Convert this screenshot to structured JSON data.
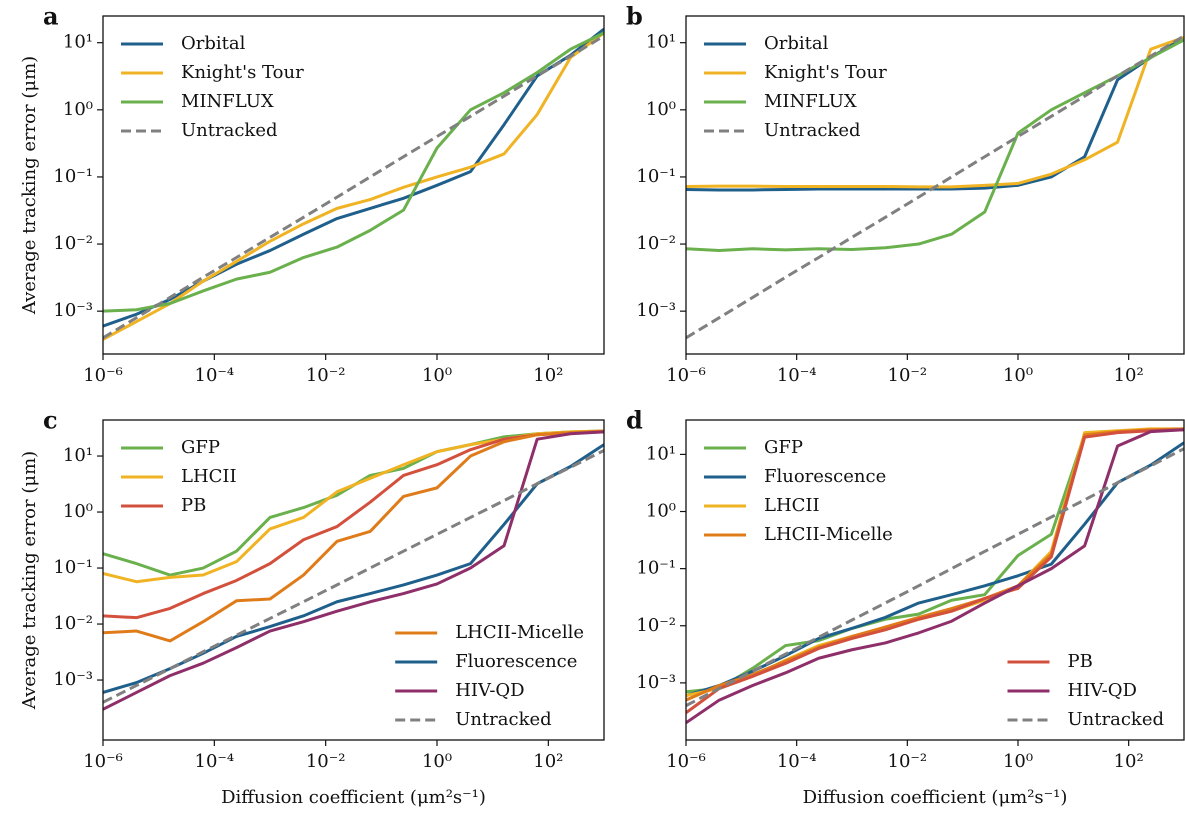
{
  "chart_data": [
    {
      "type": "line",
      "title": "a",
      "ylabel": "Average tracking error (μm)",
      "log_x": true,
      "log_y": true,
      "x": [
        1e-06,
        4e-06,
        1.6e-05,
        6.3e-05,
        0.00025,
        0.001,
        0.004,
        0.016,
        0.063,
        0.25,
        1,
        4,
        16,
        63,
        250,
        1000
      ],
      "xlim": [
        1e-06,
        1000
      ],
      "ylim": [
        0.00023,
        25
      ],
      "xticks": [
        {
          "value": 1e-06,
          "label": "10⁻⁶"
        },
        {
          "value": 0.0001,
          "label": "10⁻⁴"
        },
        {
          "value": 0.01,
          "label": "10⁻²"
        },
        {
          "value": 1,
          "label": "10⁰"
        },
        {
          "value": 100,
          "label": "10²"
        }
      ],
      "yticks": [
        {
          "value": 0.001,
          "label": "10⁻³"
        },
        {
          "value": 0.01,
          "label": "10⁻²"
        },
        {
          "value": 0.1,
          "label": "10⁻¹"
        },
        {
          "value": 1,
          "label": "10⁰"
        },
        {
          "value": 10,
          "label": "10¹"
        }
      ],
      "series": [
        {
          "name": "Orbital",
          "color": "#1f5f8b",
          "legend": "upper left",
          "values": [
            0.0006,
            0.0009,
            0.0015,
            0.0028,
            0.005,
            0.008,
            0.014,
            0.024,
            0.034,
            0.048,
            0.075,
            0.12,
            0.6,
            3.2,
            6.5,
            16
          ]
        },
        {
          "name": "Knight's Tour",
          "color": "#f0b323",
          "legend": "upper left",
          "values": [
            0.00038,
            0.0007,
            0.0013,
            0.0028,
            0.0055,
            0.011,
            0.02,
            0.034,
            0.046,
            0.07,
            0.1,
            0.14,
            0.22,
            0.85,
            6,
            14
          ]
        },
        {
          "name": "MINFLUX",
          "color": "#6ab04c",
          "legend": "upper left",
          "values": [
            0.001,
            0.00105,
            0.0013,
            0.002,
            0.003,
            0.0038,
            0.0063,
            0.009,
            0.016,
            0.032,
            0.27,
            1,
            1.8,
            3.6,
            8,
            14
          ]
        },
        {
          "name": "Untracked",
          "color": "#808080",
          "linestyle": "dashed",
          "legend": "upper left",
          "values": [
            0.0004,
            0.0008,
            0.0016,
            0.0032,
            0.0063,
            0.0126,
            0.025,
            0.05,
            0.1,
            0.2,
            0.4,
            0.8,
            1.6,
            3.2,
            6.3,
            12.6
          ]
        }
      ]
    },
    {
      "type": "line",
      "title": "b",
      "log_x": true,
      "log_y": true,
      "x": [
        1e-06,
        4e-06,
        1.6e-05,
        6.3e-05,
        0.00025,
        0.001,
        0.004,
        0.016,
        0.063,
        0.25,
        1,
        4,
        16,
        63,
        250,
        1000
      ],
      "xlim": [
        1e-06,
        1000
      ],
      "ylim": [
        0.00023,
        25
      ],
      "xticks": [
        {
          "value": 1e-06,
          "label": "10⁻⁶"
        },
        {
          "value": 0.0001,
          "label": "10⁻⁴"
        },
        {
          "value": 0.01,
          "label": "10⁻²"
        },
        {
          "value": 1,
          "label": "10⁰"
        },
        {
          "value": 100,
          "label": "10²"
        }
      ],
      "yticks": [
        {
          "value": 0.001,
          "label": "10⁻³"
        },
        {
          "value": 0.01,
          "label": "10⁻²"
        },
        {
          "value": 0.1,
          "label": "10⁻¹"
        },
        {
          "value": 1,
          "label": "10⁰"
        },
        {
          "value": 10,
          "label": "10¹"
        }
      ],
      "series": [
        {
          "name": "Orbital",
          "color": "#1f5f8b",
          "legend": "upper left",
          "values": [
            0.065,
            0.064,
            0.064,
            0.065,
            0.066,
            0.066,
            0.066,
            0.066,
            0.066,
            0.068,
            0.075,
            0.1,
            0.2,
            2.8,
            6,
            12
          ]
        },
        {
          "name": "Knight's Tour",
          "color": "#f0b323",
          "legend": "upper left",
          "values": [
            0.072,
            0.073,
            0.073,
            0.072,
            0.072,
            0.072,
            0.072,
            0.071,
            0.071,
            0.075,
            0.08,
            0.11,
            0.18,
            0.33,
            8,
            12
          ]
        },
        {
          "name": "MINFLUX",
          "color": "#6ab04c",
          "legend": "upper left",
          "values": [
            0.0085,
            0.008,
            0.0085,
            0.0082,
            0.0085,
            0.0083,
            0.0088,
            0.01,
            0.014,
            0.03,
            0.45,
            1,
            1.8,
            3.2,
            6,
            11
          ]
        },
        {
          "name": "Untracked",
          "color": "#808080",
          "linestyle": "dashed",
          "legend": "upper left",
          "values": [
            0.0004,
            0.0008,
            0.0016,
            0.0032,
            0.0063,
            0.0126,
            0.025,
            0.05,
            0.1,
            0.2,
            0.4,
            0.8,
            1.6,
            3.2,
            6.3,
            12.6
          ]
        }
      ]
    },
    {
      "type": "line",
      "title": "c",
      "ylabel": "Average tracking error (μm)",
      "xlabel": "Diffusion coefficient (μm²s⁻¹)",
      "log_x": true,
      "log_y": true,
      "x": [
        1e-06,
        4e-06,
        1.6e-05,
        6.3e-05,
        0.00025,
        0.001,
        0.004,
        0.016,
        0.063,
        0.25,
        1,
        4,
        16,
        63,
        250,
        1000
      ],
      "xlim": [
        1e-06,
        1000
      ],
      "ylim": [
        8.5e-05,
        44
      ],
      "xticks": [
        {
          "value": 1e-06,
          "label": "10⁻⁶"
        },
        {
          "value": 0.0001,
          "label": "10⁻⁴"
        },
        {
          "value": 0.01,
          "label": "10⁻²"
        },
        {
          "value": 1,
          "label": "10⁰"
        },
        {
          "value": 100,
          "label": "10²"
        }
      ],
      "yticks": [
        {
          "value": 0.001,
          "label": "10⁻³"
        },
        {
          "value": 0.01,
          "label": "10⁻²"
        },
        {
          "value": 0.1,
          "label": "10⁻¹"
        },
        {
          "value": 1,
          "label": "10⁰"
        },
        {
          "value": 10,
          "label": "10¹"
        }
      ],
      "series": [
        {
          "name": "GFP",
          "color": "#6ab04c",
          "legend": "upper left",
          "values": [
            0.18,
            0.12,
            0.075,
            0.1,
            0.2,
            0.8,
            1.2,
            2,
            4.5,
            6,
            12,
            16,
            22,
            25,
            27,
            28
          ]
        },
        {
          "name": "LHCII",
          "color": "#f0b323",
          "legend": "upper left",
          "values": [
            0.08,
            0.057,
            0.068,
            0.075,
            0.13,
            0.5,
            0.8,
            2.3,
            4,
            7,
            12,
            16,
            20,
            25,
            27,
            28
          ]
        },
        {
          "name": "PB",
          "color": "#d2503c",
          "legend": "upper left",
          "values": [
            0.014,
            0.013,
            0.019,
            0.035,
            0.06,
            0.12,
            0.32,
            0.55,
            1.5,
            4.5,
            7,
            13,
            20,
            24,
            26,
            27
          ]
        },
        {
          "name": "LHCII-Micelle",
          "color": "#e07b1a",
          "legend": "lower right",
          "values": [
            0.007,
            0.0075,
            0.005,
            0.011,
            0.026,
            0.028,
            0.075,
            0.3,
            0.45,
            1.9,
            2.7,
            10,
            18,
            24,
            26,
            28
          ]
        },
        {
          "name": "Fluorescence",
          "color": "#1f5f8b",
          "legend": "lower right",
          "values": [
            0.0006,
            0.0009,
            0.0016,
            0.003,
            0.006,
            0.009,
            0.014,
            0.025,
            0.035,
            0.05,
            0.075,
            0.12,
            0.6,
            3.2,
            6.5,
            16
          ]
        },
        {
          "name": "HIV-QD",
          "color": "#8e2f6a",
          "legend": "lower right",
          "values": [
            0.0003,
            0.0006,
            0.0012,
            0.002,
            0.0038,
            0.0075,
            0.011,
            0.017,
            0.025,
            0.035,
            0.052,
            0.1,
            0.25,
            20,
            25,
            27
          ]
        },
        {
          "name": "Untracked",
          "color": "#808080",
          "linestyle": "dashed",
          "legend": "lower right",
          "values": [
            0.0004,
            0.0008,
            0.0016,
            0.0032,
            0.0063,
            0.0126,
            0.025,
            0.05,
            0.1,
            0.2,
            0.4,
            0.8,
            1.6,
            3.2,
            6.3,
            12.6
          ]
        }
      ]
    },
    {
      "type": "line",
      "title": "d",
      "xlabel": "Diffusion coefficient (μm²s⁻¹)",
      "log_x": true,
      "log_y": true,
      "x": [
        1e-06,
        4e-06,
        1.6e-05,
        6.3e-05,
        0.00025,
        0.001,
        0.004,
        0.016,
        0.063,
        0.25,
        1,
        4,
        16,
        63,
        250,
        1000
      ],
      "xlim": [
        1e-06,
        1000
      ],
      "ylim": [
        0.0001,
        40
      ],
      "xticks": [
        {
          "value": 1e-06,
          "label": "10⁻⁶"
        },
        {
          "value": 0.0001,
          "label": "10⁻⁴"
        },
        {
          "value": 0.01,
          "label": "10⁻²"
        },
        {
          "value": 1,
          "label": "10⁰"
        },
        {
          "value": 100,
          "label": "10²"
        }
      ],
      "yticks": [
        {
          "value": 0.001,
          "label": "10⁻³"
        },
        {
          "value": 0.01,
          "label": "10⁻²"
        },
        {
          "value": 0.1,
          "label": "10⁻¹"
        },
        {
          "value": 1,
          "label": "10⁰"
        },
        {
          "value": 10,
          "label": "10¹"
        }
      ],
      "series": [
        {
          "name": "GFP",
          "color": "#6ab04c",
          "legend": "upper left",
          "values": [
            0.0007,
            0.0008,
            0.0018,
            0.0045,
            0.0055,
            0.009,
            0.013,
            0.016,
            0.028,
            0.035,
            0.17,
            0.4,
            22,
            25,
            27,
            28
          ]
        },
        {
          "name": "Fluorescence",
          "color": "#1f5f8b",
          "legend": "upper left",
          "values": [
            0.0006,
            0.0009,
            0.0016,
            0.003,
            0.006,
            0.009,
            0.014,
            0.025,
            0.035,
            0.05,
            0.075,
            0.12,
            0.6,
            3.2,
            6.5,
            16
          ]
        },
        {
          "name": "LHCII",
          "color": "#f0b323",
          "legend": "upper left",
          "values": [
            0.0006,
            0.0008,
            0.0013,
            0.0025,
            0.0045,
            0.0065,
            0.009,
            0.013,
            0.018,
            0.028,
            0.05,
            0.2,
            24,
            26,
            28,
            28
          ]
        },
        {
          "name": "LHCII-Micelle",
          "color": "#e07b1a",
          "legend": "upper left",
          "values": [
            0.0005,
            0.0009,
            0.0014,
            0.0024,
            0.0042,
            0.0065,
            0.0095,
            0.014,
            0.02,
            0.03,
            0.05,
            0.18,
            22,
            25,
            27,
            28
          ]
        },
        {
          "name": "PB",
          "color": "#d2503c",
          "legend": "lower right",
          "values": [
            0.0003,
            0.0008,
            0.0013,
            0.0022,
            0.004,
            0.006,
            0.0085,
            0.013,
            0.018,
            0.03,
            0.045,
            0.16,
            20,
            24,
            26,
            27
          ]
        },
        {
          "name": "HIV-QD",
          "color": "#8e2f6a",
          "legend": "lower right",
          "values": [
            0.0002,
            0.0005,
            0.0009,
            0.0015,
            0.0027,
            0.0038,
            0.005,
            0.0075,
            0.012,
            0.025,
            0.05,
            0.1,
            0.25,
            14,
            25,
            27
          ]
        },
        {
          "name": "Untracked",
          "color": "#808080",
          "linestyle": "dashed",
          "legend": "lower right",
          "values": [
            0.0004,
            0.0008,
            0.0016,
            0.0032,
            0.0063,
            0.0126,
            0.025,
            0.05,
            0.1,
            0.2,
            0.4,
            0.8,
            1.6,
            3.2,
            6.3,
            12.6
          ]
        }
      ]
    }
  ]
}
